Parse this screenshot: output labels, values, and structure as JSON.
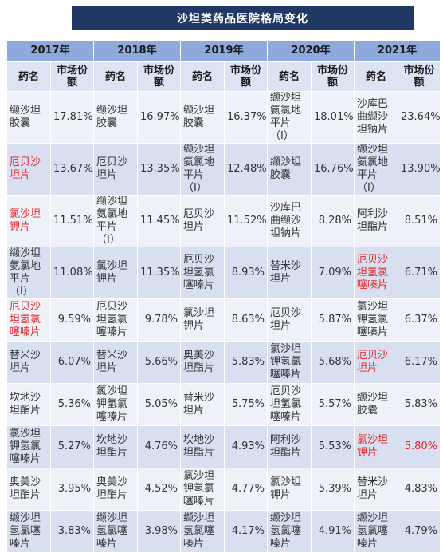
{
  "title": "沙坦类药品医院格局变化",
  "years": [
    "2017年",
    "2018年",
    "2019年",
    "2020年",
    "2021年"
  ],
  "col_name": "药名",
  "col_share": "市场份额",
  "highlight_color": "#e0282a",
  "rows": [
    [
      {
        "name": "缬沙坦胶囊",
        "share": "17.81%",
        "red": false,
        "red_share": false
      },
      {
        "name": "缬沙坦胶囊",
        "share": "16.97%",
        "red": false,
        "red_share": false
      },
      {
        "name": "缬沙坦胶囊",
        "share": "16.37%",
        "red": false,
        "red_share": false
      },
      {
        "name": "缬沙坦氨氯地平片（I）",
        "share": "18.01%",
        "red": false,
        "red_share": false
      },
      {
        "name": "沙库巴曲缬沙坦钠片",
        "share": "23.64%",
        "red": false,
        "red_share": false
      }
    ],
    [
      {
        "name": "厄贝沙坦片",
        "share": "13.67%",
        "red": true,
        "red_share": false
      },
      {
        "name": "厄贝沙坦片",
        "share": "13.35%",
        "red": false,
        "red_share": false
      },
      {
        "name": "缬沙坦氨氯地平片（I）",
        "share": "12.48%",
        "red": false,
        "red_share": false
      },
      {
        "name": "缬沙坦胶囊",
        "share": "16.76%",
        "red": false,
        "red_share": false
      },
      {
        "name": "缬沙坦氨氯地平片（I）",
        "share": "13.90%",
        "red": false,
        "red_share": false
      }
    ],
    [
      {
        "name": "氯沙坦钾片",
        "share": "11.51%",
        "red": true,
        "red_share": false
      },
      {
        "name": "缬沙坦氨氯地平片（I）",
        "share": "11.45%",
        "red": false,
        "red_share": false
      },
      {
        "name": "厄贝沙坦片",
        "share": "11.52%",
        "red": false,
        "red_share": false
      },
      {
        "name": "沙库巴曲缬沙坦钠片",
        "share": "8.28%",
        "red": false,
        "red_share": false
      },
      {
        "name": "阿利沙坦酯片",
        "share": "8.51%",
        "red": false,
        "red_share": false
      }
    ],
    [
      {
        "name": "缬沙坦氨氯地平片（I）",
        "share": "11.08%",
        "red": false,
        "red_share": false
      },
      {
        "name": "氯沙坦钾片",
        "share": "11.35%",
        "red": false,
        "red_share": false
      },
      {
        "name": "厄贝沙坦氢氯噻嗪片",
        "share": "8.93%",
        "red": false,
        "red_share": false
      },
      {
        "name": "替米沙坦片",
        "share": "7.09%",
        "red": false,
        "red_share": false
      },
      {
        "name": "厄贝沙坦氢氯噻嗪片",
        "share": "6.71%",
        "red": true,
        "red_share": false
      }
    ],
    [
      {
        "name": "厄贝沙坦氢氯噻嗪片",
        "share": "9.59%",
        "red": true,
        "red_share": false
      },
      {
        "name": "厄贝沙坦氢氯噻嗪片",
        "share": "9.78%",
        "red": false,
        "red_share": false
      },
      {
        "name": "氯沙坦钾片",
        "share": "8.63%",
        "red": false,
        "red_share": false
      },
      {
        "name": "厄贝沙坦片",
        "share": "5.87%",
        "red": false,
        "red_share": false
      },
      {
        "name": "氯沙坦钾氢氯噻嗪片",
        "share": "6.37%",
        "red": false,
        "red_share": false
      }
    ],
    [
      {
        "name": "替米沙坦片",
        "share": "6.07%",
        "red": false,
        "red_share": false
      },
      {
        "name": "替米沙坦片",
        "share": "5.66%",
        "red": false,
        "red_share": false
      },
      {
        "name": "奥美沙坦酯片",
        "share": "5.83%",
        "red": false,
        "red_share": false
      },
      {
        "name": "氯沙坦钾氢氯噻嗪片",
        "share": "5.68%",
        "red": false,
        "red_share": false
      },
      {
        "name": "厄贝沙坦片",
        "share": "6.17%",
        "red": true,
        "red_share": false
      }
    ],
    [
      {
        "name": "坎地沙坦酯片",
        "share": "5.36%",
        "red": false,
        "red_share": false
      },
      {
        "name": "氯沙坦钾氢氯噻嗪片",
        "share": "5.05%",
        "red": false,
        "red_share": false
      },
      {
        "name": "替米沙坦片",
        "share": "5.75%",
        "red": false,
        "red_share": false
      },
      {
        "name": "厄贝沙坦氢氯噻嗪片",
        "share": "5.57%",
        "red": false,
        "red_share": false
      },
      {
        "name": "缬沙坦胶囊",
        "share": "5.83%",
        "red": false,
        "red_share": false
      }
    ],
    [
      {
        "name": "氯沙坦钾氢氯噻嗪片",
        "share": "5.27%",
        "red": false,
        "red_share": false
      },
      {
        "name": "坎地沙坦酯片",
        "share": "4.76%",
        "red": false,
        "red_share": false
      },
      {
        "name": "坎地沙坦酯片",
        "share": "4.93%",
        "red": false,
        "red_share": false
      },
      {
        "name": "阿利沙坦酯片",
        "share": "5.53%",
        "red": false,
        "red_share": false
      },
      {
        "name": "氯沙坦钾片",
        "share": "5.80%",
        "red": true,
        "red_share": true
      }
    ],
    [
      {
        "name": "奥美沙坦酯片",
        "share": "3.95%",
        "red": false,
        "red_share": false
      },
      {
        "name": "奥美沙坦酯片",
        "share": "4.52%",
        "red": false,
        "red_share": false
      },
      {
        "name": "氯沙坦钾氢氯噻嗪片",
        "share": "4.77%",
        "red": false,
        "red_share": false
      },
      {
        "name": "氯沙坦钾片",
        "share": "5.39%",
        "red": false,
        "red_share": false
      },
      {
        "name": "替米沙坦片",
        "share": "4.83%",
        "red": false,
        "red_share": false
      }
    ],
    [
      {
        "name": "缬沙坦氢氯噻嗪片",
        "share": "3.83%",
        "red": false,
        "red_share": false
      },
      {
        "name": "缬沙坦氢氯噻嗪片",
        "share": "3.98%",
        "red": false,
        "red_share": false
      },
      {
        "name": "缬沙坦氢氯噻嗪片",
        "share": "4.17%",
        "red": false,
        "red_share": false
      },
      {
        "name": "缬沙坦氢氯噻嗪片",
        "share": "4.91%",
        "red": false,
        "red_share": false
      },
      {
        "name": "缬沙坦氢氯噻嗪片",
        "share": "4.79%",
        "red": false,
        "red_share": false
      }
    ]
  ]
}
